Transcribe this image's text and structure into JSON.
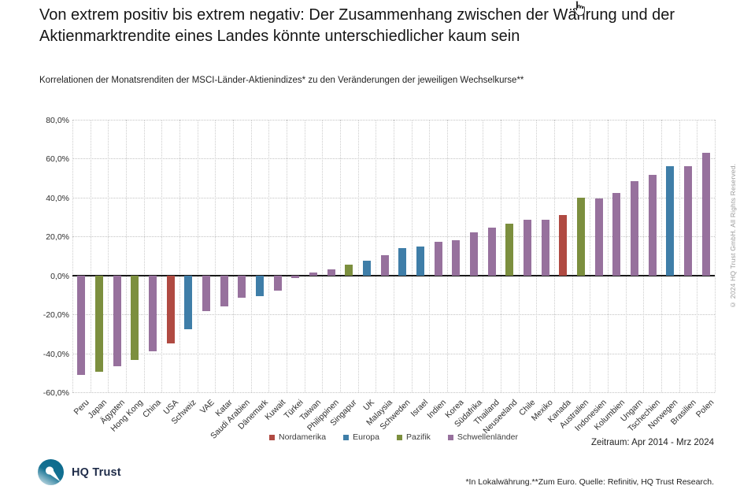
{
  "header": {
    "title": "Von extrem positiv bis extrem negativ: Der Zusammenhang zwischen der Währung und der Aktienmarktrendite eines Landes könnte unterschiedlicher kaum sein"
  },
  "chart_data": {
    "type": "bar",
    "title": "Korrelationen der Monatsrenditen der MSCI-Länder-Aktienindizes* zu den Veränderungen der jeweiligen Wechselkurse**",
    "ylabel": "",
    "ylim": [
      -60,
      80
    ],
    "ytick_step": 20,
    "ytick_labels": [
      "80,0%",
      "60,0%",
      "40,0%",
      "20,0%",
      "0,0%",
      "-20,0%",
      "-40,0%",
      "-60,0%"
    ],
    "grid": true,
    "legend_position": "bottom-center",
    "legend": [
      {
        "label": "Nordamerika",
        "color": "#b04a42"
      },
      {
        "label": "Europa",
        "color": "#3f7ea8"
      },
      {
        "label": "Pazifik",
        "color": "#7c8f3e"
      },
      {
        "label": "Schwellenländer",
        "color": "#97719d"
      }
    ],
    "bars": [
      {
        "label": "Peru",
        "value": -51,
        "region": "Schwellenländer"
      },
      {
        "label": "Japan",
        "value": -49.5,
        "region": "Pazifik"
      },
      {
        "label": "Ägypten",
        "value": -46.5,
        "region": "Schwellenländer"
      },
      {
        "label": "Hong Kong",
        "value": -43.5,
        "region": "Pazifik"
      },
      {
        "label": "China",
        "value": -39,
        "region": "Schwellenländer"
      },
      {
        "label": "USA",
        "value": -35,
        "region": "Nordamerika"
      },
      {
        "label": "Schweiz",
        "value": -27.5,
        "region": "Europa"
      },
      {
        "label": "VAE",
        "value": -18.5,
        "region": "Schwellenländer"
      },
      {
        "label": "Katar",
        "value": -16,
        "region": "Schwellenländer"
      },
      {
        "label": "Saudi Arabien",
        "value": -11.5,
        "region": "Schwellenländer"
      },
      {
        "label": "Dänemark",
        "value": -10.5,
        "region": "Europa"
      },
      {
        "label": "Kuwait",
        "value": -8,
        "region": "Schwellenländer"
      },
      {
        "label": "Türkei",
        "value": -1.5,
        "region": "Schwellenländer"
      },
      {
        "label": "Taiwan",
        "value": 1.5,
        "region": "Schwellenländer"
      },
      {
        "label": "Philippinen",
        "value": 3,
        "region": "Schwellenländer"
      },
      {
        "label": "Singapur",
        "value": 5.5,
        "region": "Pazifik"
      },
      {
        "label": "UK",
        "value": 7.5,
        "region": "Europa"
      },
      {
        "label": "Malaysia",
        "value": 10.5,
        "region": "Schwellenländer"
      },
      {
        "label": "Schweden",
        "value": 14,
        "region": "Europa"
      },
      {
        "label": "Israel",
        "value": 15,
        "region": "Europa"
      },
      {
        "label": "Indien",
        "value": 17.5,
        "region": "Schwellenländer"
      },
      {
        "label": "Korea",
        "value": 18,
        "region": "Schwellenländer"
      },
      {
        "label": "Südafrika",
        "value": 22,
        "region": "Schwellenländer"
      },
      {
        "label": "Thailand",
        "value": 24.5,
        "region": "Schwellenländer"
      },
      {
        "label": "Neuseeland",
        "value": 26.5,
        "region": "Pazifik"
      },
      {
        "label": "Chile",
        "value": 28.5,
        "region": "Schwellenländer"
      },
      {
        "label": "Mexiko",
        "value": 28.5,
        "region": "Schwellenländer"
      },
      {
        "label": "Kanada",
        "value": 31,
        "region": "Nordamerika"
      },
      {
        "label": "Australien",
        "value": 40,
        "region": "Pazifik"
      },
      {
        "label": "Indonesien",
        "value": 39.5,
        "region": "Schwellenländer"
      },
      {
        "label": "Kolumbien",
        "value": 42.5,
        "region": "Schwellenländer"
      },
      {
        "label": "Ungarn",
        "value": 48.5,
        "region": "Schwellenländer"
      },
      {
        "label": "Tschechien",
        "value": 51.5,
        "region": "Schwellenländer"
      },
      {
        "label": "Norwegen",
        "value": 56,
        "region": "Europa"
      },
      {
        "label": "Brasilien",
        "value": 56,
        "region": "Schwellenländer"
      },
      {
        "label": "Polen",
        "value": 63,
        "region": "Schwellenländer"
      }
    ]
  },
  "annotations": {
    "zeitraum": "Zeitraum: Apr 2014 - Mrz 2024",
    "footnote": "*In Lokalwährung.**Zum Euro. Quelle: Refinitiv, HQ Trust Research.",
    "copyright_vertical": "© 2024 HQ Trust GmbH. All Rights Reserved."
  },
  "footer": {
    "logo_text": "HQ Trust"
  }
}
